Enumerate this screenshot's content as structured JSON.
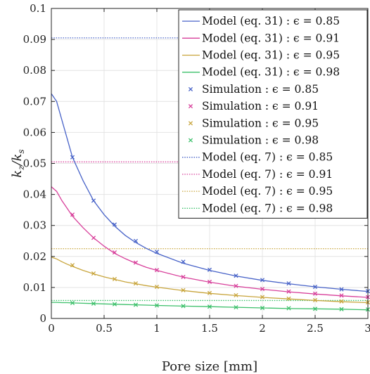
{
  "chart_data": {
    "type": "line",
    "title": "",
    "xlabel": "Pore size [mm]",
    "ylabel": "k_z/k_s",
    "xlim": [
      0,
      3
    ],
    "ylim": [
      0,
      0.1
    ],
    "xticks": [
      0,
      0.5,
      1,
      1.5,
      2,
      2.5,
      3
    ],
    "xtick_labels": [
      "0",
      "0.5",
      "1",
      "1.5",
      "2",
      "2.5",
      "3"
    ],
    "yticks": [
      0,
      0.01,
      0.02,
      0.03,
      0.04,
      0.05,
      0.06,
      0.07,
      0.08,
      0.09,
      0.1
    ],
    "ytick_labels": [
      "0",
      "0.01",
      "0.02",
      "0.03",
      "0.04",
      "0.05",
      "0.06",
      "0.07",
      "0.08",
      "0.09",
      "0.1"
    ],
    "grid": true,
    "legend_position": "top-right",
    "colors": {
      "e085": "#4863c8",
      "e091": "#d8409b",
      "e095": "#c8a53c",
      "e098": "#3cc06a"
    },
    "model_x": [
      0.0,
      0.05,
      0.1,
      0.15,
      0.2,
      0.3,
      0.4,
      0.5,
      0.6,
      0.7,
      0.8,
      0.9,
      1.0,
      1.25,
      1.5,
      1.75,
      2.0,
      2.25,
      2.5,
      2.75,
      3.0
    ],
    "sim_x": [
      0.2,
      0.4,
      0.6,
      0.8,
      1.0,
      1.25,
      1.5,
      1.75,
      2.0,
      2.25,
      2.5,
      2.75,
      3.0
    ],
    "series": [
      {
        "name": "Model (eq. 31) : ϵ = 0.85",
        "kind": "model31",
        "color": "#4863c8",
        "y": [
          0.0725,
          0.07,
          0.064,
          0.058,
          0.052,
          0.0445,
          0.038,
          0.0335,
          0.0298,
          0.0268,
          0.0245,
          0.0226,
          0.021,
          0.0178,
          0.0155,
          0.0137,
          0.0123,
          0.0112,
          0.0102,
          0.0094,
          0.0087
        ]
      },
      {
        "name": "Model (eq. 31) : ϵ = 0.91",
        "kind": "model31",
        "color": "#d8409b",
        "y": [
          0.0425,
          0.041,
          0.038,
          0.0355,
          0.033,
          0.0293,
          0.026,
          0.0233,
          0.021,
          0.0193,
          0.0178,
          0.0165,
          0.0155,
          0.0133,
          0.0117,
          0.0104,
          0.0094,
          0.0086,
          0.0079,
          0.0073,
          0.0068
        ]
      },
      {
        "name": "Model (eq. 31) : ϵ = 0.95",
        "kind": "model31",
        "color": "#c8a53c",
        "y": [
          0.0198,
          0.0192,
          0.0183,
          0.0175,
          0.0168,
          0.0155,
          0.0144,
          0.0134,
          0.0126,
          0.0118,
          0.0112,
          0.0106,
          0.0101,
          0.009,
          0.0081,
          0.0074,
          0.0068,
          0.0063,
          0.0058,
          0.0054,
          0.0051
        ]
      },
      {
        "name": "Model (eq. 31) : ϵ = 0.98",
        "kind": "model31",
        "color": "#3cc06a",
        "y": [
          0.0052,
          0.0052,
          0.0051,
          0.0051,
          0.005,
          0.0049,
          0.0048,
          0.0047,
          0.0046,
          0.0045,
          0.0044,
          0.0043,
          0.0042,
          0.004,
          0.0038,
          0.0036,
          0.0034,
          0.0032,
          0.0031,
          0.003,
          0.0028
        ]
      },
      {
        "name": "Simulation : ϵ = 0.85",
        "kind": "simulation",
        "color": "#4863c8",
        "y": [
          0.052,
          0.038,
          0.0303,
          0.025,
          0.0215,
          0.0183,
          0.0157,
          0.0138,
          0.0124,
          0.0113,
          0.0102,
          0.0094,
          0.0088
        ]
      },
      {
        "name": "Simulation : ϵ = 0.91",
        "kind": "simulation",
        "color": "#d8409b",
        "y": [
          0.0335,
          0.026,
          0.0213,
          0.018,
          0.0156,
          0.0134,
          0.0118,
          0.0105,
          0.0095,
          0.0087,
          0.008,
          0.0074,
          0.0069
        ]
      },
      {
        "name": "Simulation : ϵ = 0.95",
        "kind": "simulation",
        "color": "#c8a53c",
        "y": [
          0.0172,
          0.0145,
          0.0127,
          0.0113,
          0.0102,
          0.0091,
          0.0082,
          0.0075,
          0.0069,
          0.0064,
          0.0059,
          0.0055,
          0.0052
        ]
      },
      {
        "name": "Simulation : ϵ = 0.98",
        "kind": "simulation",
        "color": "#3cc06a",
        "y": [
          0.005,
          0.0048,
          0.0046,
          0.0044,
          0.0042,
          0.004,
          0.0038,
          0.0036,
          0.0034,
          0.0033,
          0.0031,
          0.003,
          0.0029
        ]
      },
      {
        "name": "Model (eq. 7) : ϵ = 0.85",
        "kind": "model7",
        "color": "#4863c8",
        "value": 0.0905
      },
      {
        "name": "Model (eq. 7) : ϵ = 0.91",
        "kind": "model7",
        "color": "#d8409b",
        "value": 0.0505
      },
      {
        "name": "Model (eq. 7) : ϵ = 0.95",
        "kind": "model7",
        "color": "#c8a53c",
        "value": 0.0225
      },
      {
        "name": "Model (eq. 7) : ϵ = 0.98",
        "kind": "model7",
        "color": "#3cc06a",
        "value": 0.0058
      }
    ]
  }
}
